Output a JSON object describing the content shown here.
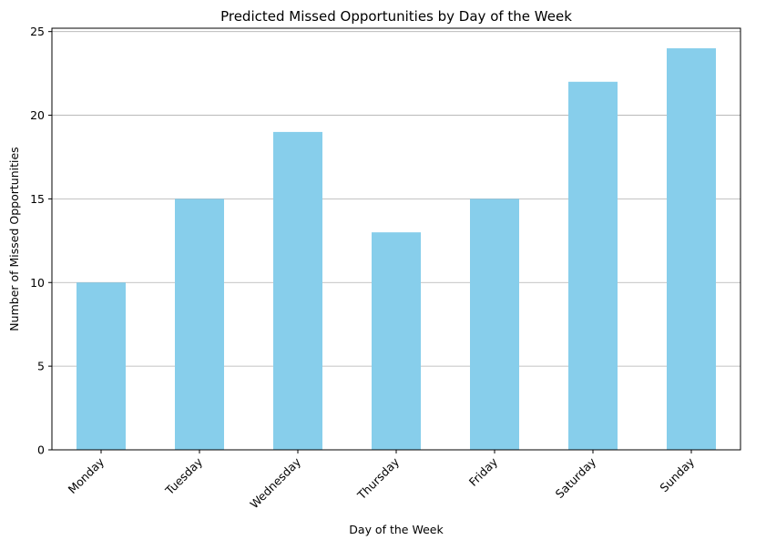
{
  "chart_data": {
    "type": "bar",
    "title": "Predicted Missed Opportunities by Day of the Week",
    "xlabel": "Day of the Week",
    "ylabel": "Number of Missed Opportunities",
    "categories": [
      "Monday",
      "Tuesday",
      "Wednesday",
      "Thursday",
      "Friday",
      "Saturday",
      "Sunday"
    ],
    "values": [
      10,
      15,
      19,
      13,
      15,
      22,
      24
    ],
    "ylim": [
      0,
      25.2
    ],
    "yticks": [
      0,
      5,
      10,
      15,
      20,
      25
    ],
    "grid": "horizontal",
    "bar_color": "#87ceeb",
    "grid_color": "#b0b0b0",
    "x_tick_rotation_deg": 45
  }
}
